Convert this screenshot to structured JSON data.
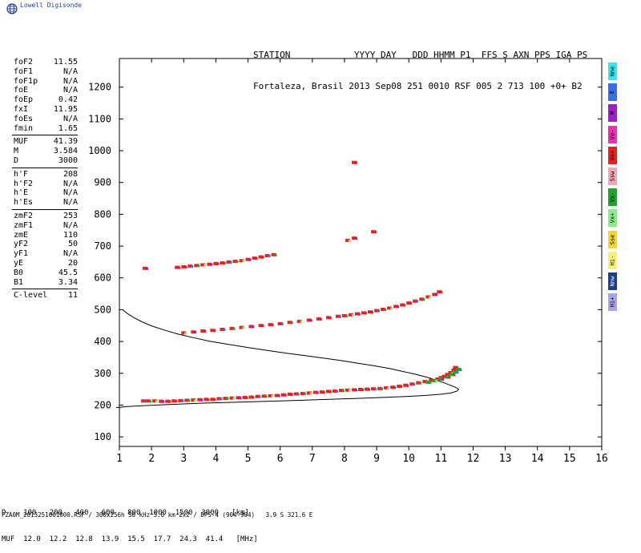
{
  "logo": {
    "brand": "Lowell Digisonde",
    "icon": "globe-icon"
  },
  "header": {
    "line1": "STATION            YYYY DAY   DDD HHMM P1  FFS S AXN PPS IGA PS",
    "line2": "Fortaleza, Brasil 2013 Sep08 251 0010 RSF 005 2 713 100 +0+ B2"
  },
  "params": {
    "group1": [
      {
        "label": "foF2",
        "value": "11.55"
      },
      {
        "label": "foF1",
        "value": "N/A"
      },
      {
        "label": "foF1p",
        "value": "N/A"
      },
      {
        "label": "foE",
        "value": "N/A"
      },
      {
        "label": "foEp",
        "value": "0.42"
      },
      {
        "label": "fxI",
        "value": "11.95"
      },
      {
        "label": "foEs",
        "value": "N/A"
      },
      {
        "label": "fmin",
        "value": "1.65"
      }
    ],
    "group2": [
      {
        "label": "MUF",
        "value": "41.39"
      },
      {
        "label": "M",
        "value": "3.584"
      },
      {
        "label": "D",
        "value": "3000"
      }
    ],
    "group3": [
      {
        "label": "h'F",
        "value": "208"
      },
      {
        "label": "h'F2",
        "value": "N/A"
      },
      {
        "label": "h'E",
        "value": "N/A"
      },
      {
        "label": "h'Es",
        "value": "N/A"
      }
    ],
    "group4": [
      {
        "label": "zmF2",
        "value": "253"
      },
      {
        "label": "zmF1",
        "value": "N/A"
      },
      {
        "label": "zmE",
        "value": "110"
      },
      {
        "label": "yF2",
        "value": "50"
      },
      {
        "label": "yF1",
        "value": "N/A"
      },
      {
        "label": "yE",
        "value": "20"
      },
      {
        "label": "B0",
        "value": "45.5"
      },
      {
        "label": "B1",
        "value": "3.34"
      }
    ],
    "group5": [
      {
        "label": "C-level",
        "value": "11"
      }
    ]
  },
  "legend": [
    {
      "label": "Nne",
      "color": "#33e6ee"
    },
    {
      "label": "E",
      "color": "#3a6fe8"
    },
    {
      "label": "W",
      "color": "#9a22c8"
    },
    {
      "label": "Vo-",
      "color": "#ee2fb0"
    },
    {
      "label": "Vo+",
      "color": "#ee1f1f"
    },
    {
      "label": "Ssw",
      "color": "#f4a6b4"
    },
    {
      "label": "Vx-",
      "color": "#1fa62a"
    },
    {
      "label": "Vx+",
      "color": "#88ee88"
    },
    {
      "label": "Sse",
      "color": "#f5d43a"
    },
    {
      "label": "Hi-",
      "color": "#f8f07a"
    },
    {
      "label": "Nnw",
      "color": "#1c3e8e"
    },
    {
      "label": "Hi+",
      "color": "#a9a3ee"
    }
  ],
  "chart_data": {
    "type": "scatter",
    "title": "",
    "xlabel": "",
    "ylabel": "",
    "xlim": [
      1,
      16
    ],
    "ylim": [
      70,
      1290
    ],
    "xticks": [
      1,
      2,
      3,
      4,
      5,
      6,
      7,
      8,
      9,
      10,
      11,
      12,
      13,
      14,
      15,
      16
    ],
    "yticks": [
      100,
      200,
      300,
      400,
      500,
      600,
      700,
      800,
      900,
      1000,
      1100,
      1200
    ],
    "series": [
      {
        "name": "F-trace O",
        "color": "#ee1f1f",
        "x": [
          1.75,
          1.9,
          2.1,
          2.3,
          2.5,
          2.7,
          2.9,
          3.1,
          3.3,
          3.5,
          3.7,
          3.9,
          4.1,
          4.3,
          4.5,
          4.7,
          4.9,
          5.1,
          5.3,
          5.5,
          5.7,
          5.9,
          6.1,
          6.3,
          6.5,
          6.7,
          6.9,
          7.1,
          7.3,
          7.5,
          7.7,
          7.9,
          8.1,
          8.3,
          8.5,
          8.7,
          8.9,
          9.1,
          9.3,
          9.5,
          9.7,
          9.9,
          10.1,
          10.3,
          10.5,
          10.7,
          10.9,
          11.0,
          11.1,
          11.2,
          11.3,
          11.4,
          11.45
        ],
        "y": [
          213,
          213,
          213,
          212,
          212,
          213,
          214,
          215,
          216,
          217,
          218,
          218,
          220,
          221,
          222,
          223,
          224,
          225,
          227,
          228,
          229,
          230,
          232,
          234,
          235,
          236,
          238,
          240,
          241,
          243,
          244,
          246,
          247,
          248,
          249,
          250,
          251,
          252,
          254,
          256,
          259,
          262,
          266,
          270,
          274,
          278,
          282,
          286,
          290,
          296,
          302,
          310,
          318
        ]
      },
      {
        "name": "F-trace X",
        "color": "#1fa62a",
        "x": [
          10.6,
          10.8,
          11.0,
          11.2,
          11.35,
          11.45,
          11.55
        ],
        "y": [
          272,
          277,
          282,
          288,
          296,
          304,
          312
        ]
      },
      {
        "name": "2F multiple",
        "color": "#ee1f1f",
        "x": [
          3.0,
          3.3,
          3.6,
          3.9,
          4.2,
          4.5,
          4.8,
          5.1,
          5.4,
          5.7,
          6.0,
          6.3,
          6.6,
          6.9,
          7.2,
          7.5,
          7.8,
          8.0,
          8.2,
          8.4,
          8.6,
          8.8,
          9.0,
          9.2,
          9.4,
          9.6,
          9.8,
          10.0,
          10.2,
          10.4,
          10.6,
          10.8,
          10.95
        ],
        "y": [
          427,
          430,
          433,
          435,
          438,
          441,
          444,
          447,
          450,
          453,
          456,
          460,
          463,
          467,
          471,
          475,
          479,
          481,
          484,
          487,
          490,
          493,
          497,
          501,
          505,
          510,
          515,
          521,
          527,
          533,
          540,
          548,
          556
        ]
      },
      {
        "name": "3F multiple",
        "color": "#ee1f1f",
        "x": [
          1.8,
          2.8,
          3.0,
          3.2,
          3.4,
          3.6,
          3.8,
          4.0,
          4.2,
          4.4,
          4.6,
          4.8,
          5.0,
          5.2,
          5.4,
          5.6,
          5.8,
          8.1,
          8.3,
          8.3,
          8.9
        ],
        "y": [
          630,
          633,
          635,
          637,
          639,
          641,
          643,
          645,
          647,
          650,
          652,
          654,
          658,
          662,
          666,
          670,
          673,
          718,
          725,
          963,
          745
        ]
      }
    ],
    "model_profile": {
      "name": "model-profile",
      "color": "#000000",
      "x": [
        1.1,
        1.25,
        1.45,
        1.7,
        2.0,
        2.4,
        2.8,
        3.3,
        3.8,
        4.4,
        5.0,
        5.6,
        6.2,
        6.8,
        7.4,
        7.9,
        8.4,
        8.9,
        9.4,
        9.8,
        10.2,
        10.55,
        10.85,
        11.1,
        11.3,
        11.45,
        11.55,
        11.5,
        11.3,
        11.0,
        10.5,
        9.9,
        9.2,
        8.4,
        7.5,
        6.6,
        5.6,
        4.6,
        3.6,
        2.6,
        1.7,
        1.2,
        1.0,
        0.9
      ],
      "y": [
        500,
        488,
        475,
        462,
        449,
        436,
        424,
        412,
        401,
        391,
        381,
        372,
        363,
        355,
        347,
        340,
        332,
        324,
        315,
        306,
        297,
        288,
        279,
        270,
        262,
        256,
        250,
        244,
        238,
        234,
        230,
        227,
        224,
        221,
        218,
        215,
        212,
        209,
        206,
        202,
        198,
        195,
        193,
        192
      ]
    }
  },
  "muf_table": {
    "line1": "D    100   200   400   600   800  1000  1500  3000   [km]",
    "line2": "MUF  12.0  12.2  12.8  13.9  15.5  17.7  24.3  41.4   [MHz]"
  },
  "footer": {
    "text": "FZA0M_2013251001000.RSF / 300x256h 50 kHz 5.0 km 2x2 / DPS-4 (904-904)   3.9 S 321.6 E"
  }
}
